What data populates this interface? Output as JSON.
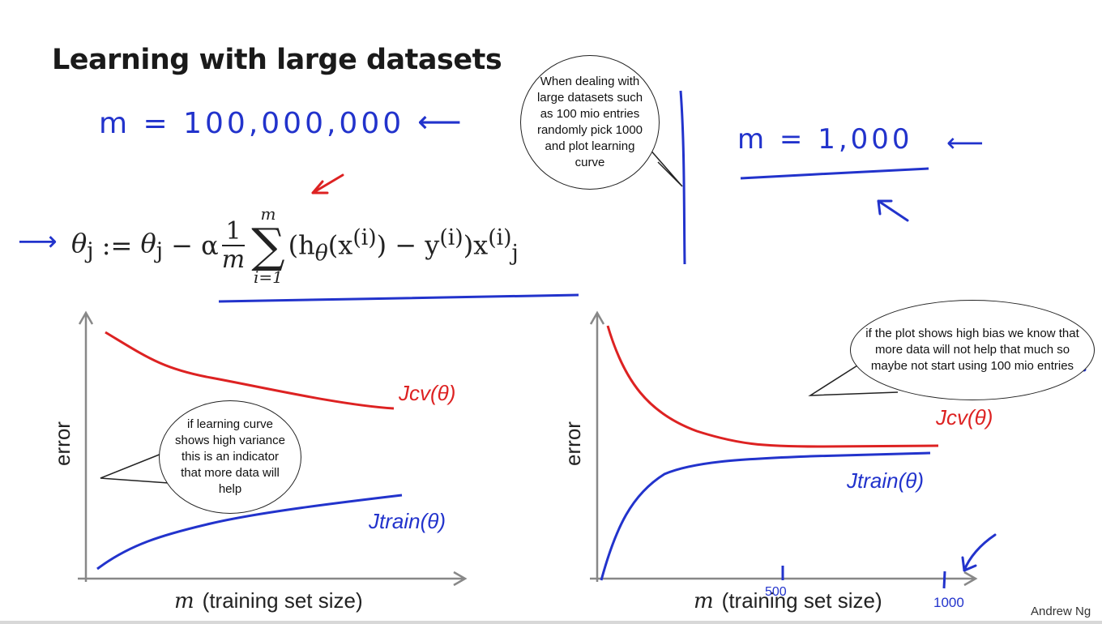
{
  "slide": {
    "title": "Learning with large datasets",
    "credit": "Andrew Ng"
  },
  "handwriting": {
    "m_large": "m = 100,000,000",
    "m_small": "m = 1,000",
    "arrow_left": "⟵",
    "arrow_right": "⟶"
  },
  "formula": {
    "lhs": "θ",
    "lhs_sub": "j",
    "assign": " := ",
    "theta": "θ",
    "theta_sub": "j",
    "minus_alpha": " − α",
    "frac_num": "1",
    "frac_den": "m",
    "sum_upper": "m",
    "sum_symbol": "∑",
    "sum_lower": "i=1",
    "body_1": "(h",
    "body_theta": "θ",
    "body_2": "(x",
    "sup_i": "(i)",
    "body_3": ") − y",
    "body_4": ")x",
    "body_sub_j": "j"
  },
  "plots": {
    "left": {
      "ylabel": "error",
      "xlabel_var": "m",
      "xlabel_text": "(training set size)",
      "cv_label": "Jcv(θ)",
      "train_label": "Jtrain(θ)"
    },
    "right": {
      "ylabel": "error",
      "xlabel_var": "m",
      "xlabel_text": "(training set size)",
      "cv_label": "Jcv(θ)",
      "train_label": "Jtrain(θ)",
      "tick_500": "500",
      "tick_1000": "1000"
    }
  },
  "bubbles": {
    "b1": "When dealing with large datasets such as 100 mio entries randomly pick 1000 and plot learning curve",
    "b2": "if the plot shows high bias we know that more data will not help that much so maybe not start using 100 mio entries",
    "b3": "if learning curve shows high variance this is an indicator that more data will help"
  },
  "colors": {
    "ink_blue": "#2233cc",
    "ink_red": "#dd2222",
    "axis_gray": "#888888"
  }
}
